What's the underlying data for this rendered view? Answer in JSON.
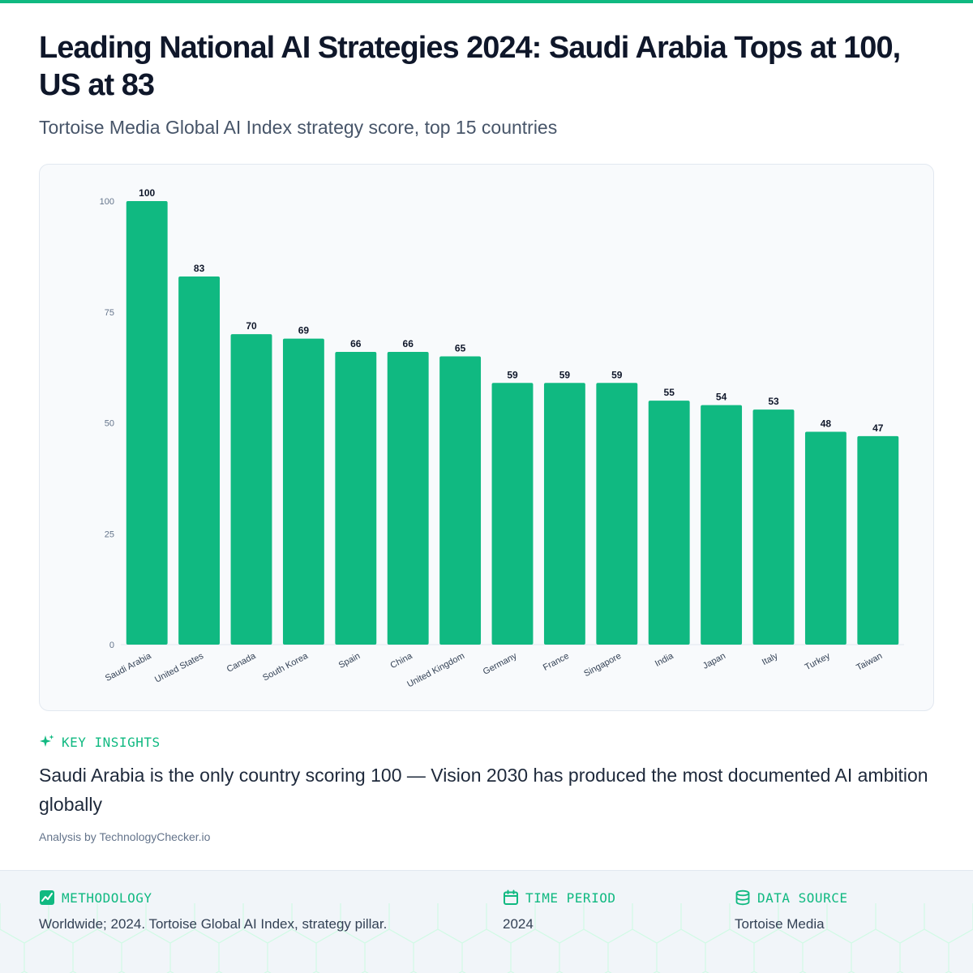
{
  "header": {
    "title": "Leading National AI Strategies 2024: Saudi Arabia Tops at 100, US at 83",
    "subtitle": "Tortoise Media Global AI Index strategy score, top 15 countries"
  },
  "colors": {
    "accent": "#10b981",
    "bar": "#10b981"
  },
  "chart_data": {
    "type": "bar",
    "categories": [
      "Saudi Arabia",
      "United States",
      "Canada",
      "South Korea",
      "Spain",
      "China",
      "United Kingdom",
      "Germany",
      "France",
      "Singapore",
      "India",
      "Japan",
      "Italy",
      "Turkey",
      "Taiwan"
    ],
    "values": [
      100,
      83,
      70,
      69,
      66,
      66,
      65,
      59,
      59,
      59,
      55,
      54,
      53,
      48,
      47
    ],
    "title": "",
    "xlabel": "",
    "ylabel": "",
    "ylim": [
      0,
      100
    ],
    "yticks": [
      0,
      25,
      50,
      75,
      100
    ],
    "grid": false,
    "data_labels": true
  },
  "insights": {
    "heading": "KEY INSIGHTS",
    "icon": "sparkle-icon",
    "text": "Saudi Arabia is the only country scoring 100 — Vision 2030 has produced the most documented AI ambition globally",
    "attribution": "Analysis by TechnologyChecker.io"
  },
  "footer": {
    "methodology": {
      "heading": "METHODOLOGY",
      "icon": "chart-icon",
      "text": "Worldwide; 2024. Tortoise Global AI Index, strategy pillar."
    },
    "time_period": {
      "heading": "TIME PERIOD",
      "icon": "calendar-icon",
      "text": "2024"
    },
    "data_source": {
      "heading": "DATA SOURCE",
      "icon": "database-icon",
      "text": "Tortoise Media"
    }
  }
}
